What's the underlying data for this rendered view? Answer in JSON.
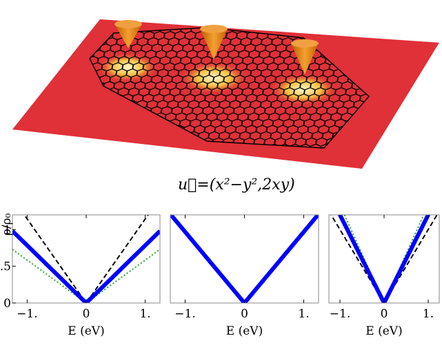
{
  "caption": "u⃗=(x²−y²,2xy)",
  "chart_data": [
    {
      "type": "line",
      "ylabel": "ρ/ρ₀",
      "xlabel": "E (eV)",
      "x": [
        -1.25,
        0,
        1.25
      ],
      "xlim": [
        -1.25,
        1.25
      ],
      "ylim": [
        0,
        1.2
      ],
      "xticks": [
        {
          "value": -1,
          "label": "−1."
        },
        0,
        {
          "value": 1,
          "label": "1."
        }
      ],
      "yticks": [
        0,
        0.5,
        1
      ],
      "series": [
        {
          "color": "#0000ff",
          "style": "thick",
          "values": [
            0.98,
            0,
            0.98
          ]
        },
        {
          "color": "#000000",
          "style": "dashed",
          "values": [
            1.43,
            0,
            1.43
          ]
        },
        {
          "color": "#22aa22",
          "style": "dotted",
          "values": [
            0.73,
            0,
            0.73
          ]
        }
      ]
    },
    {
      "type": "line",
      "xlabel": "E (eV)",
      "x": [
        -1.25,
        0,
        1.25
      ],
      "xlim": [
        -1.25,
        1.25
      ],
      "ylim": [
        0,
        1.2
      ],
      "xticks": [
        {
          "value": -1,
          "label": "−1."
        },
        0,
        {
          "value": 1,
          "label": "1."
        }
      ],
      "series": [
        {
          "color": "#0000ff",
          "style": "thick",
          "values": [
            1.21,
            0,
            1.21
          ]
        },
        {
          "color": "#000000",
          "style": "dashed",
          "values": [
            1.21,
            0,
            1.21
          ]
        },
        {
          "color": "#22aa22",
          "style": "dotted",
          "values": [
            1.21,
            0,
            1.21
          ]
        }
      ]
    },
    {
      "type": "line",
      "xlabel": "E (eV)",
      "x": [
        -1.25,
        0,
        1.25
      ],
      "xlim": [
        -1.25,
        1.25
      ],
      "ylim": [
        0,
        1.2
      ],
      "xticks": [
        {
          "value": -1,
          "label": "−1."
        },
        0,
        {
          "value": 1,
          "label": "1."
        }
      ],
      "series": [
        {
          "color": "#0000ff",
          "style": "thick",
          "values": [
            1.5,
            0,
            1.5
          ]
        },
        {
          "color": "#000000",
          "style": "dashed",
          "values": [
            1.25,
            0,
            1.25
          ]
        },
        {
          "color": "#22aa22",
          "style": "dotted",
          "values": [
            1.67,
            0,
            1.67
          ]
        }
      ]
    }
  ]
}
